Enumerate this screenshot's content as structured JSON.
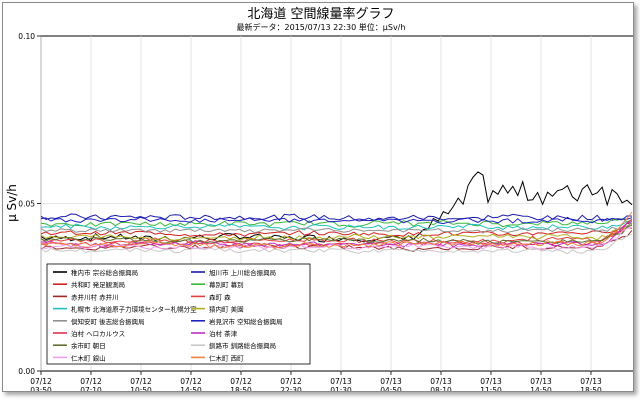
{
  "chart_data": {
    "type": "line",
    "title": "北海道 空間線量率グラフ",
    "subtitle": "最新データ：2015/07/13 22:30  単位：μSv/h",
    "ylabel": "μ Sv/h",
    "ylim": [
      0.0,
      0.1
    ],
    "yticks": [
      "0.00",
      "0.05",
      "0.10"
    ],
    "x_ticks": [
      {
        "date": "07/12",
        "time": "03:50"
      },
      {
        "date": "07/12",
        "time": "07:10"
      },
      {
        "date": "07/12",
        "time": "10:50"
      },
      {
        "date": "07/12",
        "time": "14:50"
      },
      {
        "date": "07/12",
        "time": "18:50"
      },
      {
        "date": "07/12",
        "time": "22:30"
      },
      {
        "date": "07/13",
        "time": "01:30"
      },
      {
        "date": "07/13",
        "time": "04:50"
      },
      {
        "date": "07/13",
        "time": "08:10"
      },
      {
        "date": "07/13",
        "time": "11:50"
      },
      {
        "date": "07/13",
        "time": "14:50"
      },
      {
        "date": "07/13",
        "time": "18:50"
      }
    ],
    "grid": true,
    "legend_position": "lower-left inside",
    "series": [
      {
        "name": "稚内市 宗谷総合振興局",
        "color": "#000000",
        "base": 0.04,
        "rise_to": 0.053,
        "noise": 0.0012
      },
      {
        "name": "旭川市 上川総合振興局",
        "color": "#1a1aa8",
        "base": 0.046,
        "rise_to": 0.046,
        "noise": 0.001
      },
      {
        "name": "共和町 発足観測局",
        "color": "#d02020",
        "base": 0.041,
        "rise_to": 0.044,
        "noise": 0.0008
      },
      {
        "name": "幕別町 幕別",
        "color": "#38b838",
        "base": 0.044,
        "rise_to": 0.045,
        "noise": 0.0009
      },
      {
        "name": "赤井川村 赤井川",
        "color": "#a02828",
        "base": 0.037,
        "rise_to": 0.042,
        "noise": 0.0008
      },
      {
        "name": "森町 森",
        "color": "#e04040",
        "base": 0.039,
        "rise_to": 0.043,
        "noise": 0.0009
      },
      {
        "name": "札幌市 北海道原子力環境センター札幌分室",
        "color": "#20c0c0",
        "base": 0.043,
        "rise_to": 0.045,
        "noise": 0.0008
      },
      {
        "name": "猿内町 美園",
        "color": "#b0b020",
        "base": 0.04,
        "rise_to": 0.044,
        "noise": 0.0008
      },
      {
        "name": "倶知安町 後志総合振興局",
        "color": "#909090",
        "base": 0.042,
        "rise_to": 0.044,
        "noise": 0.0007
      },
      {
        "name": "岩見沢市 空知総合振興局",
        "color": "#2020c0",
        "base": 0.045,
        "rise_to": 0.046,
        "noise": 0.0008
      },
      {
        "name": "泊村 ヘロカルウス",
        "color": "#e03050",
        "base": 0.038,
        "rise_to": 0.044,
        "noise": 0.0009
      },
      {
        "name": "泊村 茶津",
        "color": "#c030c0",
        "base": 0.038,
        "rise_to": 0.045,
        "noise": 0.0009
      },
      {
        "name": "余市町 朝日",
        "color": "#607030",
        "base": 0.039,
        "rise_to": 0.043,
        "noise": 0.0008
      },
      {
        "name": "釧路市 釧路総合振興局",
        "color": "#c8c8c8",
        "base": 0.036,
        "rise_to": 0.041,
        "noise": 0.0007
      },
      {
        "name": "仁木町 銀山",
        "color": "#f0a0f0",
        "base": 0.037,
        "rise_to": 0.043,
        "noise": 0.0008
      },
      {
        "name": "仁木町 西町",
        "color": "#f08040",
        "base": 0.038,
        "rise_to": 0.047,
        "noise": 0.0009
      }
    ]
  }
}
